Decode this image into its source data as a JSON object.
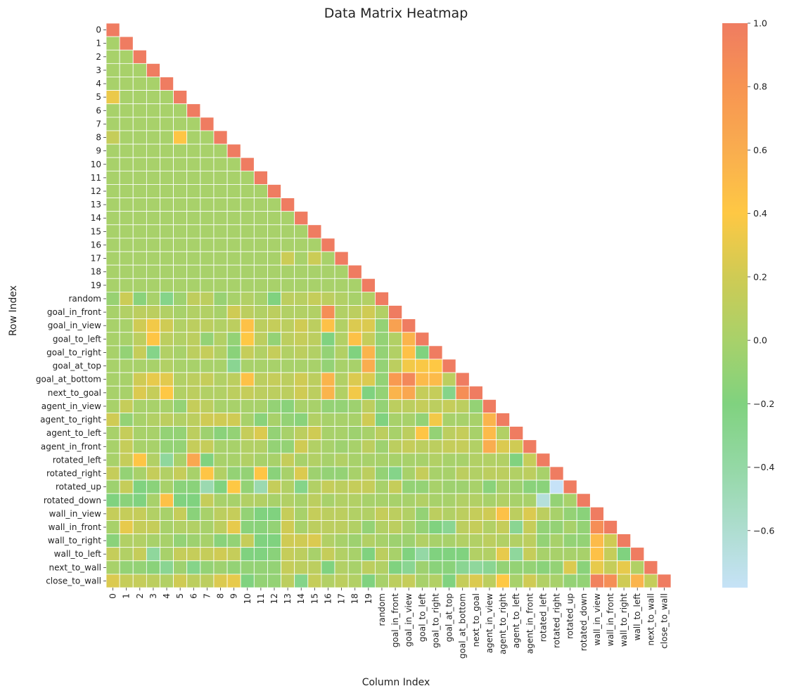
{
  "chart_data": {
    "type": "heatmap",
    "title": "Data Matrix Heatmap",
    "xlabel": "Column Index",
    "ylabel": "Row Index",
    "mask": "upper-triangle",
    "labels": [
      "0",
      "1",
      "2",
      "3",
      "4",
      "5",
      "6",
      "7",
      "8",
      "9",
      "10",
      "11",
      "12",
      "13",
      "14",
      "15",
      "16",
      "17",
      "18",
      "19",
      "random",
      "goal_in_front",
      "goal_in_view",
      "goal_to_left",
      "goal_to_right",
      "goal_at_top",
      "goal_at_bottom",
      "next_to_goal",
      "agent_in_view",
      "agent_to_right",
      "agent_to_left",
      "agent_in_front",
      "rotated_left",
      "rotated_right",
      "rotated_up",
      "rotated_down",
      "wall_in_view",
      "wall_in_front",
      "wall_to_right",
      "wall_to_left",
      "next_to_wall",
      "close_to_wall"
    ],
    "value_range": [
      -0.78,
      1.0
    ],
    "colorbar": {
      "ticks": [
        1.0,
        0.8,
        0.6,
        0.4,
        0.2,
        0.0,
        -0.2,
        -0.4,
        -0.6
      ],
      "tick_labels": [
        "1.0",
        "0.8",
        "0.6",
        "0.4",
        "0.2",
        "0.0",
        "−0.2",
        "−0.4",
        "−0.6"
      ],
      "stops": [
        {
          "value": -0.78,
          "color": "#c6e2f7"
        },
        {
          "value": -0.4,
          "color": "#94d8a5"
        },
        {
          "value": -0.2,
          "color": "#80d27f"
        },
        {
          "value": 0.0,
          "color": "#a8d16a"
        },
        {
          "value": 0.2,
          "color": "#cfcb54"
        },
        {
          "value": 0.4,
          "color": "#fec844"
        },
        {
          "value": 0.6,
          "color": "#f9ad4f"
        },
        {
          "value": 0.8,
          "color": "#f79452"
        },
        {
          "value": 1.0,
          "color": "#ef7c61"
        }
      ]
    },
    "values": [
      [
        1.0
      ],
      [
        0.0,
        1.0
      ],
      [
        0.0,
        0.0,
        1.0
      ],
      [
        0.0,
        0.0,
        0.0,
        1.0
      ],
      [
        0.0,
        0.0,
        0.0,
        0.0,
        1.0
      ],
      [
        0.32,
        0.0,
        0.0,
        0.0,
        0.0,
        1.0
      ],
      [
        0.0,
        0.0,
        0.0,
        0.0,
        0.0,
        0.0,
        1.0
      ],
      [
        0.0,
        0.0,
        0.0,
        0.0,
        0.0,
        0.0,
        0.0,
        1.0
      ],
      [
        0.15,
        0.0,
        0.0,
        0.0,
        0.0,
        0.42,
        0.0,
        0.0,
        1.0
      ],
      [
        0.0,
        0.0,
        0.0,
        0.0,
        0.0,
        0.0,
        0.0,
        0.0,
        0.0,
        1.0
      ],
      [
        0.0,
        0.0,
        0.0,
        0.0,
        0.0,
        0.0,
        0.0,
        0.0,
        0.0,
        0.0,
        1.0
      ],
      [
        0.0,
        0.0,
        0.0,
        0.0,
        0.0,
        0.0,
        0.0,
        0.0,
        0.0,
        0.0,
        0.0,
        1.0
      ],
      [
        0.0,
        0.0,
        0.0,
        0.0,
        0.0,
        0.0,
        0.0,
        0.0,
        0.0,
        0.0,
        0.0,
        0.0,
        1.0
      ],
      [
        0.0,
        0.0,
        0.0,
        0.0,
        0.0,
        0.0,
        0.0,
        0.0,
        0.0,
        0.0,
        0.0,
        0.0,
        0.0,
        1.0
      ],
      [
        0.0,
        0.0,
        0.0,
        0.0,
        0.0,
        0.0,
        0.0,
        0.0,
        0.0,
        0.0,
        0.0,
        0.0,
        0.0,
        0.0,
        1.0
      ],
      [
        0.0,
        0.0,
        0.0,
        0.0,
        0.0,
        0.0,
        0.0,
        0.0,
        0.0,
        0.0,
        0.0,
        0.0,
        0.0,
        0.0,
        0.0,
        1.0
      ],
      [
        0.0,
        0.0,
        0.0,
        0.0,
        0.0,
        0.0,
        0.0,
        0.0,
        0.0,
        0.0,
        0.0,
        0.0,
        0.0,
        0.0,
        0.0,
        0.0,
        1.0
      ],
      [
        0.0,
        0.0,
        0.0,
        0.0,
        0.0,
        0.0,
        0.0,
        0.0,
        0.0,
        0.0,
        0.0,
        0.0,
        0.0,
        0.18,
        0.0,
        0.18,
        0.0,
        1.0
      ],
      [
        0.0,
        0.0,
        0.0,
        0.0,
        0.0,
        0.0,
        0.0,
        0.0,
        0.0,
        0.0,
        0.0,
        0.0,
        0.0,
        0.0,
        0.0,
        0.0,
        0.0,
        0.0,
        1.0
      ],
      [
        0.0,
        0.0,
        0.0,
        0.0,
        0.0,
        0.0,
        0.0,
        0.0,
        0.0,
        0.0,
        0.0,
        0.0,
        0.0,
        0.0,
        0.0,
        0.0,
        0.0,
        0.0,
        0.0,
        1.0
      ],
      [
        -0.08,
        0.18,
        -0.15,
        0.0,
        -0.25,
        -0.05,
        0.12,
        0.1,
        -0.08,
        0.0,
        0.05,
        0.0,
        -0.2,
        0.1,
        0.08,
        0.15,
        0.1,
        0.05,
        0.0,
        0.05,
        1.0
      ],
      [
        0.0,
        0.05,
        0.1,
        0.1,
        0.05,
        0.0,
        0.05,
        0.05,
        0.0,
        0.2,
        0.1,
        0.05,
        0.1,
        0.05,
        0.05,
        0.05,
        0.85,
        0.05,
        0.1,
        0.2,
        0.05,
        1.0
      ],
      [
        0.0,
        0.0,
        0.2,
        0.35,
        0.2,
        0.05,
        0.1,
        0.1,
        0.05,
        0.1,
        0.45,
        0.1,
        0.15,
        0.1,
        0.2,
        0.1,
        0.45,
        0.05,
        0.25,
        0.25,
        -0.1,
        0.7,
        1.0
      ],
      [
        0.0,
        0.0,
        0.1,
        0.42,
        0.1,
        0.05,
        0.1,
        -0.1,
        0.05,
        -0.1,
        0.4,
        0.1,
        -0.1,
        0.1,
        0.15,
        0.1,
        -0.2,
        0.05,
        0.45,
        0.15,
        -0.1,
        0.05,
        0.55,
        1.0
      ],
      [
        0.0,
        -0.1,
        0.15,
        -0.25,
        0.05,
        0.0,
        0.1,
        0.15,
        0.05,
        -0.15,
        0.15,
        0.05,
        0.15,
        0.05,
        0.1,
        0.05,
        -0.1,
        0.05,
        -0.2,
        0.55,
        -0.1,
        0.05,
        0.45,
        -0.2,
        1.0
      ],
      [
        0.0,
        0.0,
        0.0,
        0.0,
        0.05,
        0.0,
        0.0,
        0.0,
        0.0,
        -0.3,
        0.0,
        0.0,
        0.0,
        0.0,
        0.0,
        0.0,
        -0.1,
        0.0,
        0.0,
        0.6,
        -0.1,
        0.1,
        0.35,
        0.38,
        0.4,
        1.0
      ],
      [
        0.0,
        0.0,
        0.2,
        0.3,
        0.28,
        0.05,
        0.1,
        0.15,
        0.05,
        0.1,
        0.45,
        0.1,
        0.15,
        0.1,
        0.2,
        0.1,
        0.55,
        0.05,
        0.25,
        0.25,
        -0.1,
        0.75,
        0.9,
        0.5,
        0.5,
        0.1,
        1.0
      ],
      [
        0.0,
        0.0,
        0.25,
        0.15,
        0.4,
        0.05,
        0.1,
        0.05,
        0.05,
        0.1,
        0.15,
        0.1,
        0.1,
        0.1,
        0.2,
        0.1,
        0.55,
        0.05,
        0.35,
        -0.2,
        -0.1,
        0.55,
        0.65,
        0.15,
        0.15,
        -0.25,
        0.85,
        1.0
      ],
      [
        0.0,
        0.15,
        0.0,
        0.0,
        0.0,
        -0.1,
        0.15,
        0.1,
        0.0,
        0.0,
        0.0,
        0.0,
        -0.1,
        -0.15,
        0.0,
        0.0,
        -0.1,
        -0.1,
        -0.05,
        0.1,
        -0.1,
        0.1,
        0.1,
        0.15,
        0.1,
        0.15,
        0.1,
        -0.1,
        1.0
      ],
      [
        0.2,
        -0.1,
        0.0,
        0.05,
        0.1,
        0.05,
        0.1,
        0.2,
        0.2,
        0.2,
        0.0,
        -0.15,
        0.0,
        -0.1,
        -0.15,
        0.05,
        0.0,
        0.0,
        0.0,
        0.2,
        -0.2,
        0.0,
        0.0,
        -0.1,
        0.35,
        0.0,
        0.0,
        0.0,
        0.55,
        1.0
      ],
      [
        0.0,
        0.15,
        0.0,
        0.0,
        -0.1,
        -0.1,
        0.1,
        -0.05,
        -0.15,
        -0.1,
        0.15,
        0.25,
        -0.1,
        0.0,
        0.1,
        0.2,
        0.0,
        0.0,
        -0.05,
        0.0,
        0.1,
        0.0,
        0.1,
        0.42,
        -0.1,
        0.1,
        0.15,
        0.0,
        0.5,
        0.05,
        1.0
      ],
      [
        0.0,
        0.15,
        0.0,
        0.0,
        -0.1,
        -0.1,
        0.15,
        0.15,
        0.0,
        0.0,
        0.05,
        0.05,
        -0.1,
        -0.1,
        0.2,
        0.05,
        0.0,
        -0.05,
        0.0,
        0.1,
        -0.05,
        0.1,
        0.15,
        0.1,
        0.1,
        0.15,
        0.15,
        0.05,
        0.6,
        0.25,
        0.2,
        1.0
      ],
      [
        0.0,
        0.15,
        0.42,
        0.05,
        -0.35,
        0.0,
        0.65,
        -0.2,
        0.0,
        0.0,
        0.05,
        0.0,
        0.0,
        0.15,
        0.0,
        0.05,
        0.0,
        0.05,
        0.0,
        0.0,
        0.0,
        0.0,
        0.0,
        0.0,
        0.05,
        0.0,
        0.0,
        0.05,
        0.05,
        0.05,
        -0.2,
        0.15,
        1.0
      ],
      [
        0.15,
        -0.1,
        0.0,
        0.15,
        0.05,
        0.15,
        0.0,
        0.42,
        0.05,
        -0.1,
        -0.1,
        0.42,
        -0.15,
        0.0,
        0.25,
        -0.05,
        -0.1,
        -0.1,
        0.0,
        0.1,
        -0.1,
        -0.25,
        0.0,
        0.15,
        0.0,
        0.0,
        0.1,
        0.05,
        0.1,
        0.1,
        0.05,
        0.1,
        0.0,
        1.0
      ],
      [
        -0.05,
        0.15,
        -0.2,
        -0.15,
        0.0,
        -0.15,
        -0.15,
        -0.45,
        -0.2,
        0.4,
        -0.1,
        -0.45,
        0.15,
        0.05,
        -0.25,
        0.05,
        0.15,
        0.1,
        0.15,
        0.15,
        0.0,
        0.15,
        -0.1,
        -0.1,
        0.0,
        -0.05,
        -0.05,
        0.0,
        -0.15,
        0.0,
        -0.05,
        -0.15,
        -0.15,
        -0.78,
        1.0
      ],
      [
        -0.2,
        -0.15,
        -0.2,
        0.0,
        0.45,
        -0.2,
        -0.2,
        0.15,
        0.0,
        0.0,
        0.05,
        0.05,
        0.0,
        0.05,
        0.0,
        0.1,
        0.0,
        0.05,
        0.05,
        0.0,
        0.0,
        0.0,
        0.0,
        0.05,
        0.0,
        0.0,
        0.05,
        0.05,
        0.0,
        0.05,
        0.0,
        0.0,
        -0.65,
        -0.1,
        0.0,
        1.0
      ],
      [
        0.15,
        0.15,
        0.15,
        0.05,
        0.0,
        0.15,
        -0.15,
        0.0,
        0.1,
        0.15,
        -0.1,
        -0.2,
        -0.2,
        0.15,
        0.0,
        0.15,
        0.1,
        0.1,
        0.05,
        0.05,
        0.15,
        0.1,
        0.05,
        -0.1,
        0.1,
        0.05,
        0.1,
        0.15,
        0.2,
        0.45,
        0.1,
        0.25,
        0.1,
        0.0,
        -0.1,
        -0.15,
        1.0
      ],
      [
        0.0,
        0.3,
        0.15,
        0.15,
        0.0,
        0.05,
        0.05,
        0.0,
        0.1,
        0.3,
        -0.15,
        -0.15,
        -0.1,
        0.2,
        0.0,
        0.1,
        0.1,
        0.1,
        0.05,
        -0.1,
        0.05,
        0.1,
        0.0,
        -0.1,
        -0.2,
        -0.3,
        0.1,
        0.15,
        0.05,
        0.15,
        -0.3,
        0.15,
        -0.1,
        -0.1,
        0.0,
        -0.1,
        0.85,
        1.0
      ],
      [
        -0.15,
        0.05,
        0.05,
        0.0,
        0.0,
        -0.1,
        -0.05,
        0.0,
        -0.15,
        -0.1,
        0.15,
        -0.2,
        -0.2,
        0.2,
        0.2,
        0.25,
        0.05,
        0.0,
        -0.05,
        0.05,
        0.0,
        -0.05,
        -0.05,
        0.05,
        0.0,
        0.0,
        0.05,
        0.05,
        0.1,
        0.05,
        0.05,
        0.1,
        -0.1,
        0.0,
        -0.1,
        -0.1,
        0.5,
        0.2,
        1.0
      ],
      [
        0.15,
        0.05,
        0.15,
        -0.35,
        0.0,
        0.15,
        0.15,
        0.15,
        0.2,
        0.15,
        -0.2,
        -0.2,
        -0.15,
        0.15,
        0.1,
        0.0,
        0.15,
        0.05,
        0.0,
        -0.2,
        0.1,
        0.0,
        -0.2,
        -0.4,
        -0.2,
        -0.2,
        -0.2,
        0.05,
        0.05,
        0.3,
        -0.35,
        0.15,
        0.0,
        0.0,
        0.0,
        0.0,
        0.45,
        0.15,
        -0.2,
        1.0
      ],
      [
        0.0,
        -0.1,
        -0.1,
        -0.15,
        -0.3,
        -0.05,
        -0.25,
        -0.1,
        -0.05,
        -0.1,
        -0.1,
        -0.1,
        -0.1,
        0.15,
        0.1,
        0.1,
        -0.2,
        0.05,
        0.0,
        0.1,
        0.05,
        -0.2,
        -0.3,
        -0.05,
        -0.15,
        -0.15,
        -0.3,
        -0.35,
        -0.3,
        -0.1,
        -0.1,
        -0.1,
        -0.15,
        -0.1,
        0.25,
        -0.15,
        0.3,
        0.15,
        0.3,
        0.05,
        1.0
      ],
      [
        0.25,
        0.15,
        0.15,
        0.1,
        0.05,
        0.2,
        0.1,
        0.1,
        0.25,
        0.3,
        -0.2,
        -0.1,
        -0.1,
        0.1,
        -0.25,
        0.15,
        0.05,
        0.1,
        0.05,
        -0.2,
        0.0,
        0.1,
        0.15,
        0.0,
        0.05,
        -0.2,
        0.15,
        0.25,
        0.1,
        0.4,
        0.0,
        0.2,
        0.05,
        0.0,
        -0.1,
        -0.1,
        0.95,
        0.85,
        0.2,
        0.55,
        0.15,
        1.0
      ]
    ]
  }
}
